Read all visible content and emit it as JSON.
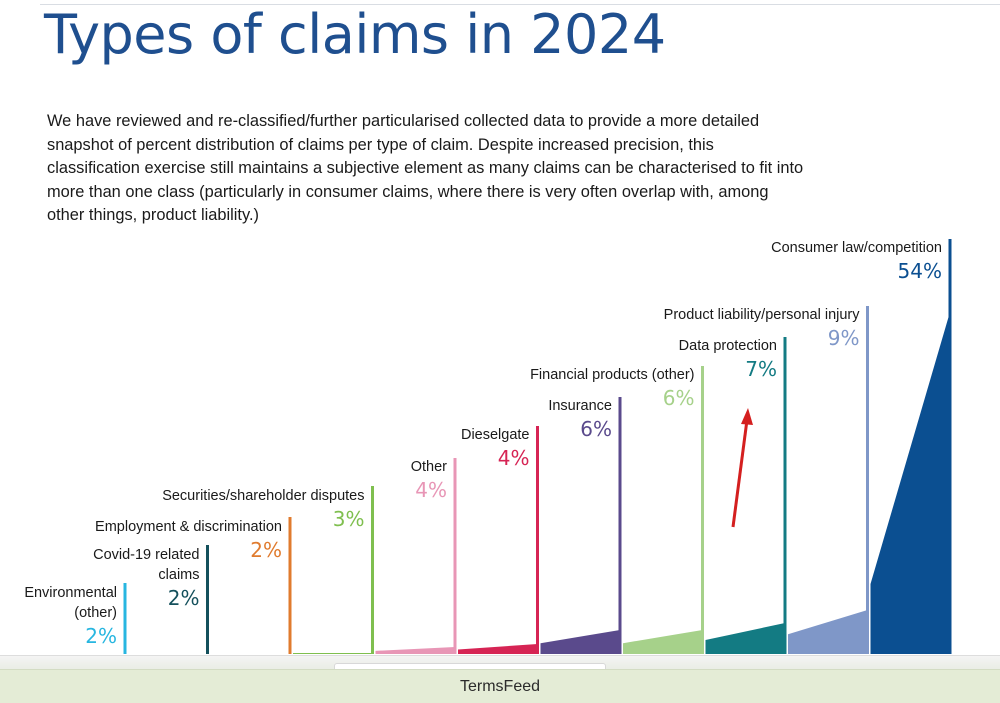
{
  "page": {
    "title": "Types of claims in 2024",
    "intro": "We have reviewed and re-classified/further particularised collected data to provide a more detailed snapshot of percent distribution of claims per type of claim. Despite increased precision, this classification exercise still maintains a subjective element as many claims can be characterised to fit into more than one class (particularly in consumer claims, where there is very often overlap with, among other things, product liability.)"
  },
  "chart_data": {
    "type": "bar",
    "title": "Types of claims in 2024",
    "xlabel": "",
    "ylabel": "",
    "ylim": [
      0,
      54
    ],
    "grid": false,
    "legend": "none",
    "categories": [
      {
        "label": [
          "Environmental",
          "(other)"
        ],
        "value": 2,
        "value_label": "2%",
        "color": "#27b6e0"
      },
      {
        "label": [
          "Covid-19 related",
          "claims"
        ],
        "value": 2,
        "value_label": "2%",
        "color": "#14505c"
      },
      {
        "label": [
          "Employment & discrimination"
        ],
        "value": 2,
        "value_label": "2%",
        "color": "#e07b2e"
      },
      {
        "label": [
          "Securities/shareholder disputes"
        ],
        "value": 3,
        "value_label": "3%",
        "color": "#7fbf4f"
      },
      {
        "label": [
          "Other"
        ],
        "value": 4,
        "value_label": "4%",
        "color": "#e896b6"
      },
      {
        "label": [
          "Dieselgate"
        ],
        "value": 4,
        "value_label": "4%",
        "color": "#d62454"
      },
      {
        "label": [
          "Insurance"
        ],
        "value": 6,
        "value_label": "6%",
        "color": "#5a4a8c"
      },
      {
        "label": [
          "Financial products (other)"
        ],
        "value": 6,
        "value_label": "6%",
        "color": "#a6d18a"
      },
      {
        "label": [
          "Data protection"
        ],
        "value": 7,
        "value_label": "7%",
        "color": "#137b83"
      },
      {
        "label": [
          "Product liability/personal injury"
        ],
        "value": 9,
        "value_label": "9%",
        "color": "#7f97c8"
      },
      {
        "label": [
          "Consumer law/competition"
        ],
        "value": 54,
        "value_label": "54%",
        "color": "#0b4f91"
      }
    ],
    "annotations": [
      {
        "type": "arrow",
        "color": "#d41f1f",
        "near": "Data protection"
      }
    ]
  },
  "footer": {
    "text": "TermsFeed"
  }
}
